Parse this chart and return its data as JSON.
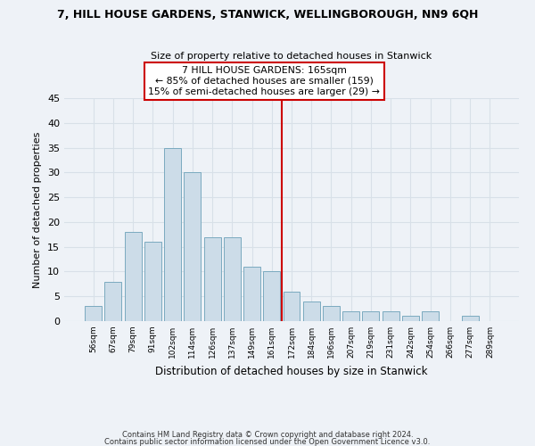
{
  "title": "7, HILL HOUSE GARDENS, STANWICK, WELLINGBOROUGH, NN9 6QH",
  "subtitle": "Size of property relative to detached houses in Stanwick",
  "xlabel": "Distribution of detached houses by size in Stanwick",
  "ylabel": "Number of detached properties",
  "bar_labels": [
    "56sqm",
    "67sqm",
    "79sqm",
    "91sqm",
    "102sqm",
    "114sqm",
    "126sqm",
    "137sqm",
    "149sqm",
    "161sqm",
    "172sqm",
    "184sqm",
    "196sqm",
    "207sqm",
    "219sqm",
    "231sqm",
    "242sqm",
    "254sqm",
    "266sqm",
    "277sqm",
    "289sqm"
  ],
  "bar_values": [
    3,
    8,
    18,
    16,
    35,
    30,
    17,
    17,
    11,
    10,
    6,
    4,
    3,
    2,
    2,
    2,
    1,
    2,
    0,
    1,
    0
  ],
  "bar_color": "#ccdce8",
  "bar_edge_color": "#7aaabf",
  "vline_x": 9.5,
  "vline_color": "#cc0000",
  "annotation_line1": "7 HILL HOUSE GARDENS: 165sqm",
  "annotation_line2": "← 85% of detached houses are smaller (159)",
  "annotation_line3": "15% of semi-detached houses are larger (29) →",
  "ylim": [
    0,
    45
  ],
  "yticks": [
    0,
    5,
    10,
    15,
    20,
    25,
    30,
    35,
    40,
    45
  ],
  "footer1": "Contains HM Land Registry data © Crown copyright and database right 2024.",
  "footer2": "Contains public sector information licensed under the Open Government Licence v3.0.",
  "grid_color": "#d8e0e8",
  "background_color": "#eef2f7"
}
